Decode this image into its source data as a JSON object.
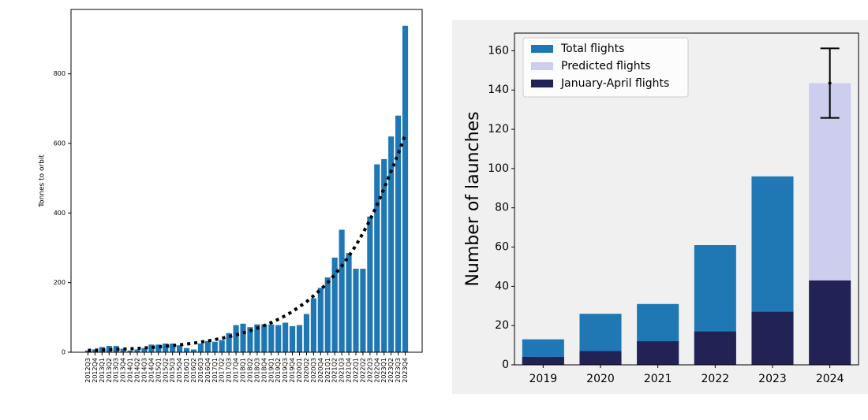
{
  "chart_data": [
    {
      "type": "bar",
      "ylabel": "Tonnes to orbit",
      "color": "#1f77b4",
      "categories": [
        "2012Q3",
        "2012Q4",
        "2013Q1",
        "2013Q2",
        "2013Q3",
        "2013Q4",
        "2014Q1",
        "2014Q2",
        "2014Q3",
        "2014Q4",
        "2015Q1",
        "2015Q2",
        "2015Q3",
        "2015Q4",
        "2016Q1",
        "2016Q2",
        "2016Q3",
        "2016Q4",
        "2017Q1",
        "2017Q2",
        "2017Q3",
        "2017Q4",
        "2018Q1",
        "2018Q2",
        "2018Q3",
        "2018Q4",
        "2019Q1",
        "2019Q2",
        "2019Q3",
        "2019Q4",
        "2020Q1",
        "2020Q2",
        "2020Q3",
        "2020Q4",
        "2021Q1",
        "2021Q2",
        "2021Q3",
        "2021Q4",
        "2022Q1",
        "2022Q2",
        "2022Q3",
        "2022Q4",
        "2023Q1",
        "2023Q2",
        "2023Q3",
        "2023Q4"
      ],
      "values": [
        5,
        8,
        15,
        18,
        18,
        10,
        5,
        8,
        12,
        22,
        22,
        25,
        25,
        20,
        12,
        8,
        25,
        32,
        30,
        35,
        55,
        78,
        82,
        72,
        80,
        80,
        80,
        78,
        85,
        75,
        78,
        110,
        155,
        185,
        215,
        272,
        352,
        285,
        240,
        240,
        390,
        540,
        555,
        620,
        680,
        938
      ],
      "trend": {
        "color": "#000000",
        "style": "dotted",
        "values": [
          5.3,
          5.9,
          6.5,
          7.3,
          8.1,
          9,
          10,
          11.1,
          12.4,
          13.8,
          15.3,
          17.1,
          19,
          21.2,
          23.6,
          26.3,
          29.2,
          32.5,
          36.2,
          40.3,
          44.8,
          49.9,
          55.5,
          61.8,
          68.8,
          76.6,
          85.2,
          94.8,
          105,
          117,
          131,
          145,
          162,
          180,
          200,
          223,
          248,
          276,
          307,
          342,
          380,
          423,
          471,
          520,
          570,
          625
        ]
      },
      "ylim": [
        0,
        985
      ],
      "yticks": [
        0,
        200,
        400,
        600,
        800
      ],
      "grid": false
    },
    {
      "type": "bar",
      "ylabel": "Number of launches",
      "background": "#f0f0f0",
      "legend": "upper left",
      "overlay": true,
      "categories": [
        "2019",
        "2020",
        "2021",
        "2022",
        "2023",
        "2024"
      ],
      "series": [
        {
          "name": "Total flights",
          "color": "#1f77b4",
          "values": [
            13,
            26,
            31,
            61,
            96,
            null
          ]
        },
        {
          "name": "Predicted flights",
          "color": "#cdcdee",
          "values": [
            null,
            null,
            null,
            null,
            null,
            143.5
          ],
          "errors": [
            null,
            null,
            null,
            null,
            null,
            17.7
          ]
        },
        {
          "name": "January-April flights",
          "color": "#222255",
          "values": [
            4,
            7,
            12,
            17,
            27,
            43
          ]
        }
      ],
      "ylim": [
        0,
        169
      ],
      "yticks": [
        0,
        20,
        40,
        60,
        80,
        100,
        120,
        140,
        160
      ],
      "grid": false
    }
  ]
}
